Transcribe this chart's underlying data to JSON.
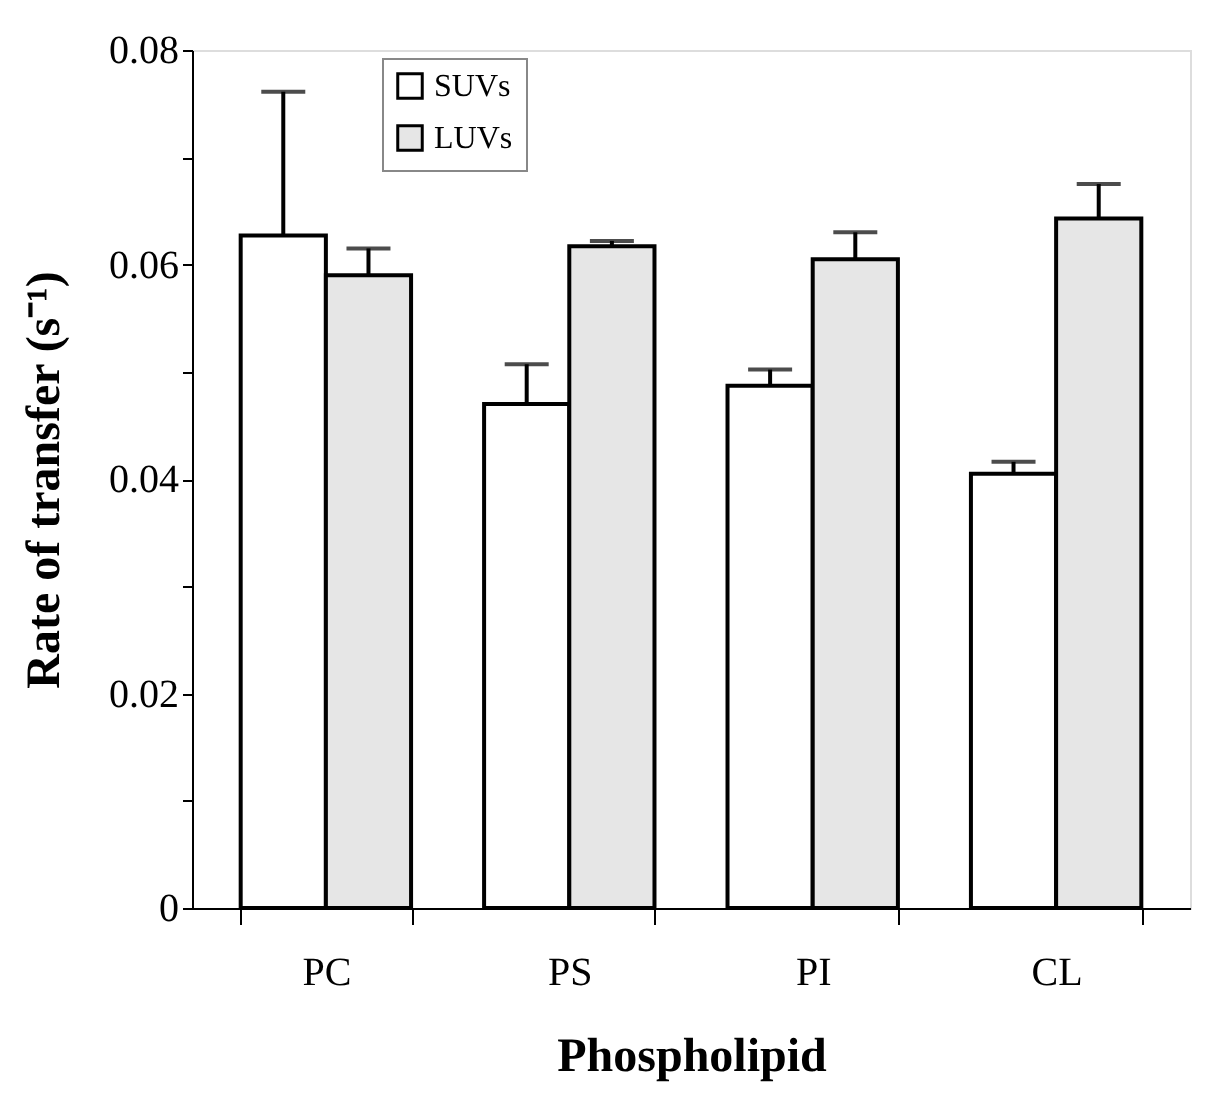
{
  "chart_data": {
    "type": "bar",
    "xlabel": "Phospholipid",
    "ylabel": "Rate of transfer (s⁻¹)",
    "categories": [
      "PC",
      "PS",
      "PI",
      "CL"
    ],
    "series": [
      {
        "name": "SUVs",
        "color": "#ffffff",
        "values": [
          0.0627,
          0.047,
          0.0487,
          0.0405
        ],
        "errors": [
          [
            0.0627,
            0.0761
          ],
          [
            0.047,
            0.0507
          ],
          [
            0.0487,
            0.0502
          ],
          [
            0.0405,
            0.0416
          ]
        ]
      },
      {
        "name": "LUVs",
        "color": "#e6e6e6",
        "values": [
          0.059,
          0.0617,
          0.0605,
          0.0643
        ],
        "errors": [
          [
            0.059,
            0.0615
          ],
          [
            0.0617,
            0.0622
          ],
          [
            0.0605,
            0.063
          ],
          [
            0.0643,
            0.0675
          ]
        ]
      }
    ],
    "ylim": [
      0,
      0.08
    ],
    "yticks": [
      0,
      {
        "value": 0.01,
        "label": null
      },
      0.02,
      {
        "value": 0.03,
        "label": null
      },
      0.04,
      {
        "value": 0.05,
        "label": null
      },
      0.06,
      {
        "value": 0.07,
        "label": null
      },
      0.08
    ],
    "grid": false,
    "legend": "top left"
  }
}
